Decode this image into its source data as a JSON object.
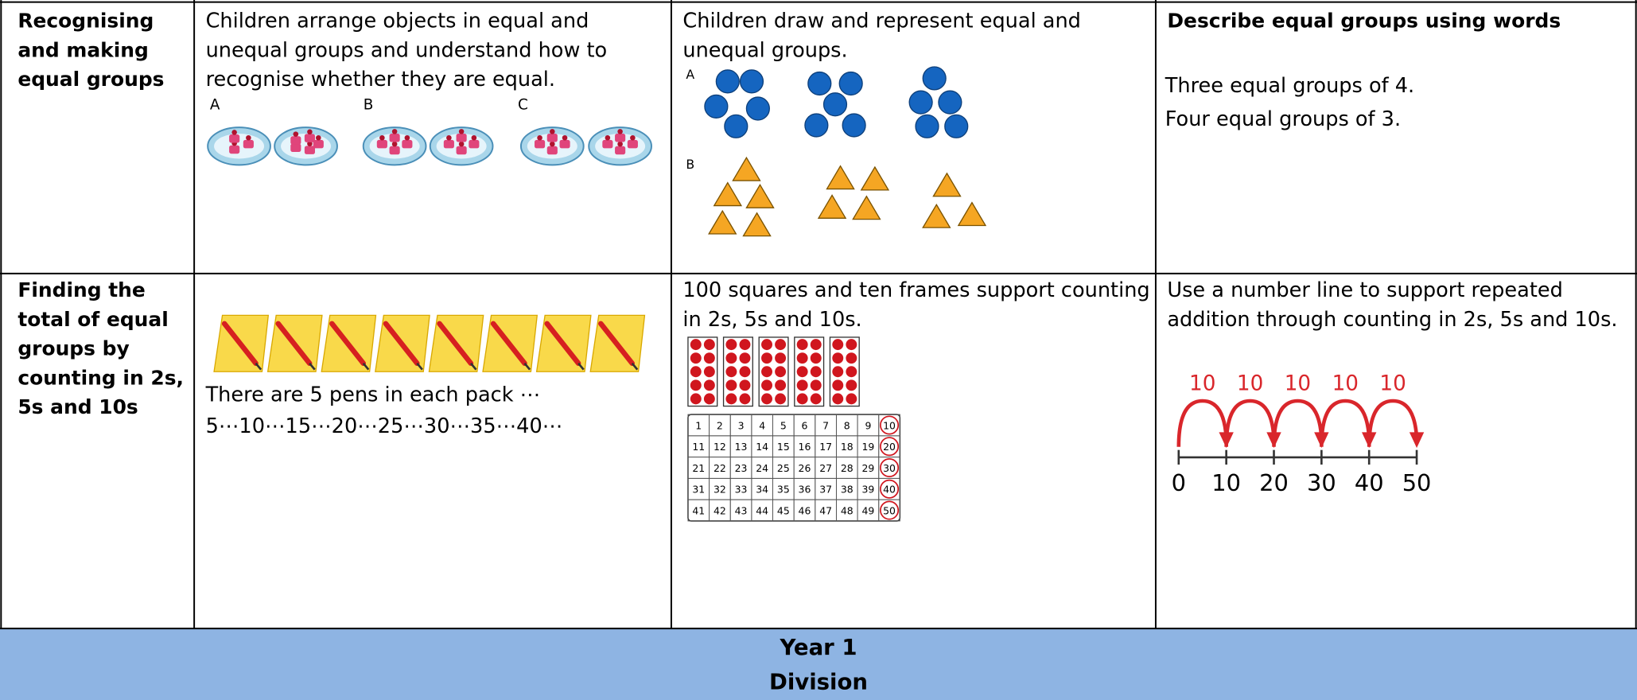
{
  "table": {
    "rows": [
      {
        "heading": [
          "Recognising",
          "and making",
          "equal groups"
        ],
        "col2": {
          "text": [
            "Children arrange objects in equal and",
            "unequal groups and understand how to",
            "recognise whether they are equal."
          ],
          "labels": [
            "A",
            "B",
            "C"
          ]
        },
        "col3": {
          "text": [
            "Children draw and represent equal and",
            "unequal groups."
          ],
          "labels": [
            "A",
            "B"
          ]
        },
        "col4": {
          "title": "Describe equal groups using words",
          "lines": [
            "Three equal groups of 4.",
            "Four equal groups of 3."
          ]
        }
      },
      {
        "heading": [
          "Finding the",
          "total of equal",
          "groups by",
          "counting in 2s,",
          "5s and 10s"
        ],
        "col2": {
          "text": [
            "There are 5 pens in each pack ⋯",
            "5⋯10⋯15⋯20⋯25⋯30⋯35⋯40⋯"
          ]
        },
        "col3": {
          "text": [
            "100 squares and ten frames support counting",
            "in 2s, 5s and 10s."
          ],
          "hundred_square": [
            [
              1,
              2,
              3,
              4,
              5,
              6,
              7,
              8,
              9,
              10
            ],
            [
              11,
              12,
              13,
              14,
              15,
              16,
              17,
              18,
              19,
              20
            ],
            [
              21,
              22,
              23,
              24,
              25,
              26,
              27,
              28,
              29,
              30
            ],
            [
              31,
              32,
              33,
              34,
              35,
              36,
              37,
              38,
              39,
              40
            ],
            [
              41,
              42,
              43,
              44,
              45,
              46,
              47,
              48,
              49,
              50
            ]
          ]
        },
        "col4": {
          "text": [
            "Use a number line to support repeated",
            "addition through counting in 2s, 5s and 10s."
          ],
          "jumps": [
            10,
            10,
            10,
            10,
            10
          ],
          "number_line": [
            0,
            10,
            20,
            30,
            40,
            50
          ]
        }
      }
    ]
  },
  "footer": {
    "title": "Year 1",
    "subtitle": "Division"
  }
}
